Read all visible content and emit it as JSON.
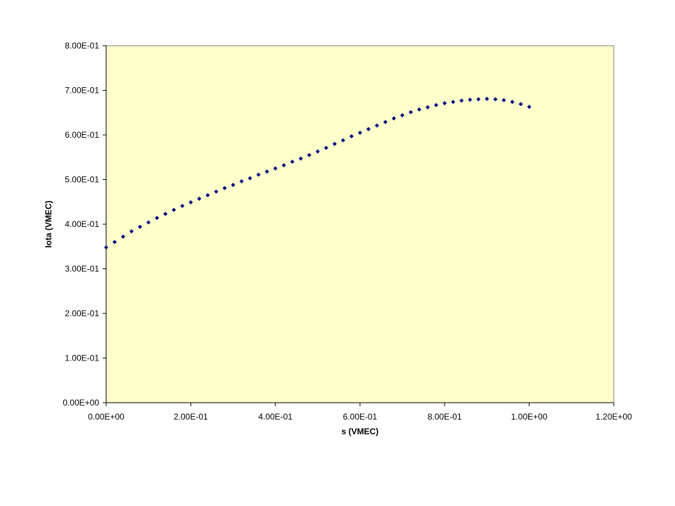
{
  "chart_data": {
    "type": "scatter",
    "title": "",
    "xlabel": "s (VMEC)",
    "ylabel": "Iota (VMEC)",
    "xlim": [
      0,
      1.2
    ],
    "ylim": [
      0,
      0.8
    ],
    "xticks": [
      0,
      0.2,
      0.4,
      0.6,
      0.8,
      1.0,
      1.2
    ],
    "yticks": [
      0,
      0.1,
      0.2,
      0.3,
      0.4,
      0.5,
      0.6,
      0.7,
      0.8
    ],
    "xtick_labels": [
      "0.00E+00",
      "2.00E-01",
      "4.00E-01",
      "6.00E-01",
      "8.00E-01",
      "1.00E+00",
      "1.20E+00"
    ],
    "ytick_labels": [
      "0.00E+00",
      "1.00E-01",
      "2.00E-01",
      "3.00E-01",
      "4.00E-01",
      "5.00E-01",
      "6.00E-01",
      "7.00E-01",
      "8.00E-01"
    ],
    "grid": false,
    "plot_background": "#FFFFCC",
    "marker_color": "#000080",
    "series": [
      {
        "x": [
          0.0,
          0.02,
          0.04,
          0.06,
          0.08,
          0.1,
          0.12,
          0.14,
          0.16,
          0.18,
          0.2,
          0.22,
          0.24,
          0.26,
          0.28,
          0.3,
          0.32,
          0.34,
          0.36,
          0.38,
          0.4,
          0.42,
          0.44,
          0.46,
          0.48,
          0.5,
          0.52,
          0.54,
          0.56,
          0.58,
          0.6,
          0.62,
          0.64,
          0.66,
          0.68,
          0.7,
          0.72,
          0.74,
          0.76,
          0.78,
          0.8,
          0.82,
          0.84,
          0.86,
          0.88,
          0.9,
          0.92,
          0.94,
          0.96,
          0.98,
          1.0
        ],
        "y": [
          0.348,
          0.36,
          0.372,
          0.384,
          0.394,
          0.404,
          0.414,
          0.423,
          0.432,
          0.441,
          0.449,
          0.457,
          0.465,
          0.473,
          0.481,
          0.488,
          0.496,
          0.503,
          0.511,
          0.518,
          0.525,
          0.532,
          0.54,
          0.547,
          0.555,
          0.563,
          0.571,
          0.58,
          0.588,
          0.597,
          0.605,
          0.613,
          0.621,
          0.629,
          0.637,
          0.644,
          0.651,
          0.657,
          0.662,
          0.667,
          0.671,
          0.674,
          0.677,
          0.679,
          0.68,
          0.681,
          0.68,
          0.678,
          0.674,
          0.669,
          0.663
        ]
      }
    ]
  }
}
